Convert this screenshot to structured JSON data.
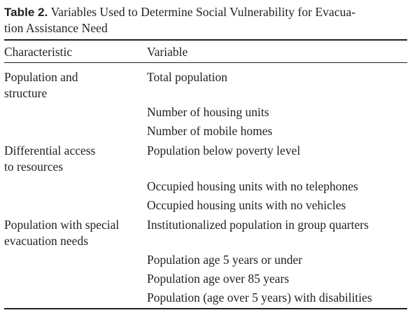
{
  "caption": {
    "label": "Table 2.",
    "line1": "Variables Used to Determine Social Vulnerability for Evacua-",
    "line2": "tion Assistance Need"
  },
  "headers": {
    "characteristic": "Characteristic",
    "variable": "Variable"
  },
  "groups": [
    {
      "characteristic_line1": "Population and",
      "characteristic_line2": "structure",
      "variables": [
        "Total population",
        "Number of housing units",
        "Number of mobile homes"
      ]
    },
    {
      "characteristic_line1": "Differential access",
      "characteristic_line2": "to resources",
      "variables": [
        "Population below poverty level",
        "Occupied housing units with no telephones",
        "Occupied housing units with no vehicles"
      ]
    },
    {
      "characteristic_line1": "Population with special",
      "characteristic_line2": "evacuation needs",
      "variables": [
        "Institutionalized population in group quarters",
        "Population age 5 years or under",
        "Population age over 85 years",
        "Population (age over 5 years) with disabilities"
      ]
    }
  ]
}
